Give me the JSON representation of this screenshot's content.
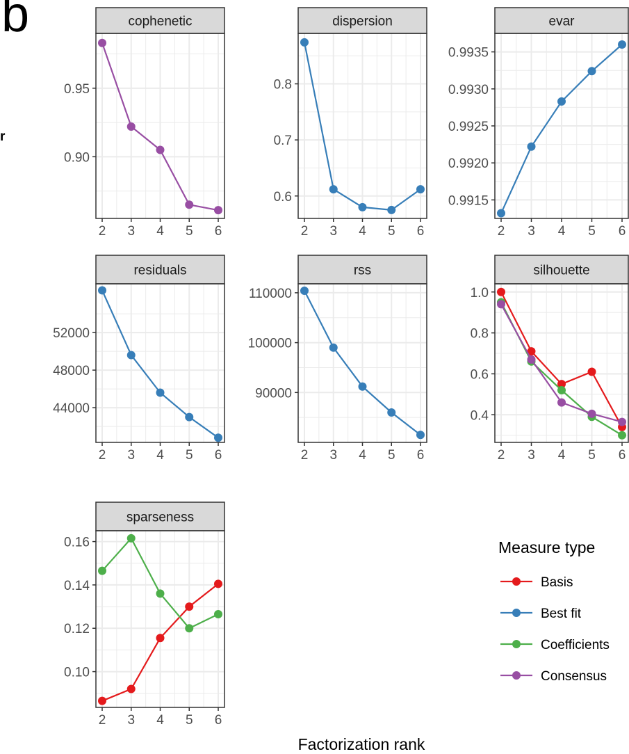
{
  "figure": {
    "panel_letter": "b",
    "stray_text": "r",
    "xlabel": "Factorization rank"
  },
  "legend": {
    "title": "Measure type",
    "items": [
      {
        "label": "Basis",
        "color": "#E41A1C"
      },
      {
        "label": "Best fit",
        "color": "#377EB8"
      },
      {
        "label": "Coefficients",
        "color": "#4DAF4A"
      },
      {
        "label": "Consensus",
        "color": "#984EA3"
      }
    ]
  },
  "colors": {
    "Basis": "#E41A1C",
    "Best fit": "#377EB8",
    "Coefficients": "#4DAF4A",
    "Consensus": "#984EA3",
    "strip_fill": "#D9D9D9",
    "grid": "#EBEBEB"
  },
  "chart_data": [
    {
      "type": "line",
      "title": "cophenetic",
      "x": [
        2,
        3,
        4,
        5,
        6
      ],
      "xticks": [
        "2",
        "3",
        "4",
        "5",
        "6"
      ],
      "yticks": [
        0.95,
        0.9
      ],
      "ytick_labels": [
        "0.95",
        "0.90"
      ],
      "ylim": [
        0.855,
        0.99
      ],
      "series": [
        {
          "name": "Consensus",
          "values": [
            0.983,
            0.922,
            0.905,
            0.865,
            0.861
          ]
        }
      ]
    },
    {
      "type": "line",
      "title": "dispersion",
      "x": [
        2,
        3,
        4,
        5,
        6
      ],
      "xticks": [
        "2",
        "3",
        "4",
        "5",
        "6"
      ],
      "yticks": [
        0.8,
        0.7,
        0.6
      ],
      "ytick_labels": [
        "0.8",
        "0.7",
        "0.6"
      ],
      "ylim": [
        0.56,
        0.89
      ],
      "series": [
        {
          "name": "Best fit",
          "values": [
            0.874,
            0.612,
            0.58,
            0.575,
            0.612
          ]
        }
      ]
    },
    {
      "type": "line",
      "title": "evar",
      "x": [
        2,
        3,
        4,
        5,
        6
      ],
      "xticks": [
        "2",
        "3",
        "4",
        "5",
        "6"
      ],
      "yticks": [
        0.9935,
        0.993,
        0.9925,
        0.992,
        0.9915
      ],
      "ytick_labels": [
        "0.9935",
        "0.9930",
        "0.9925",
        "0.9920",
        "0.9915"
      ],
      "ylim": [
        0.99125,
        0.99375
      ],
      "series": [
        {
          "name": "Best fit",
          "values": [
            0.99132,
            0.99222,
            0.99283,
            0.99324,
            0.9936
          ]
        }
      ]
    },
    {
      "type": "line",
      "title": "residuals",
      "x": [
        2,
        3,
        4,
        5,
        6
      ],
      "xticks": [
        "2",
        "3",
        "4",
        "5",
        "6"
      ],
      "yticks": [
        52000,
        48000,
        44000
      ],
      "ytick_labels": [
        "52000",
        "48000",
        "44000"
      ],
      "ylim": [
        40300,
        57200
      ],
      "series": [
        {
          "name": "Best fit",
          "values": [
            56500,
            49600,
            45600,
            43000,
            40800
          ]
        }
      ]
    },
    {
      "type": "line",
      "title": "rss",
      "x": [
        2,
        3,
        4,
        5,
        6
      ],
      "xticks": [
        "2",
        "3",
        "4",
        "5",
        "6"
      ],
      "yticks": [
        110000,
        100000,
        90000
      ],
      "ytick_labels": [
        "110000",
        "100000",
        "90000"
      ],
      "ylim": [
        80000,
        111800
      ],
      "series": [
        {
          "name": "Best fit",
          "values": [
            110400,
            99000,
            91200,
            86000,
            81500
          ]
        }
      ]
    },
    {
      "type": "line",
      "title": "silhouette",
      "x": [
        2,
        3,
        4,
        5,
        6
      ],
      "xticks": [
        "2",
        "3",
        "4",
        "5",
        "6"
      ],
      "yticks": [
        1.0,
        0.8,
        0.6,
        0.4
      ],
      "ytick_labels": [
        "1.0",
        "0.8",
        "0.6",
        "0.4"
      ],
      "ylim": [
        0.265,
        1.04
      ],
      "series": [
        {
          "name": "Basis",
          "values": [
            1.0,
            0.71,
            0.55,
            0.61,
            0.34
          ]
        },
        {
          "name": "Coefficients",
          "values": [
            0.95,
            0.66,
            0.52,
            0.39,
            0.3
          ]
        },
        {
          "name": "Consensus",
          "values": [
            0.94,
            0.67,
            0.46,
            0.405,
            0.365
          ]
        }
      ]
    },
    {
      "type": "line",
      "title": "sparseness",
      "x": [
        2,
        3,
        4,
        5,
        6
      ],
      "xticks": [
        "2",
        "3",
        "4",
        "5",
        "6"
      ],
      "yticks": [
        0.16,
        0.14,
        0.12,
        0.1
      ],
      "ytick_labels": [
        "0.16",
        "0.14",
        "0.12",
        "0.10"
      ],
      "ylim": [
        0.0835,
        0.165
      ],
      "series": [
        {
          "name": "Basis",
          "values": [
            0.0865,
            0.092,
            0.1155,
            0.13,
            0.1405
          ]
        },
        {
          "name": "Coefficients",
          "values": [
            0.1465,
            0.1615,
            0.136,
            0.12,
            0.1265
          ]
        }
      ]
    }
  ]
}
